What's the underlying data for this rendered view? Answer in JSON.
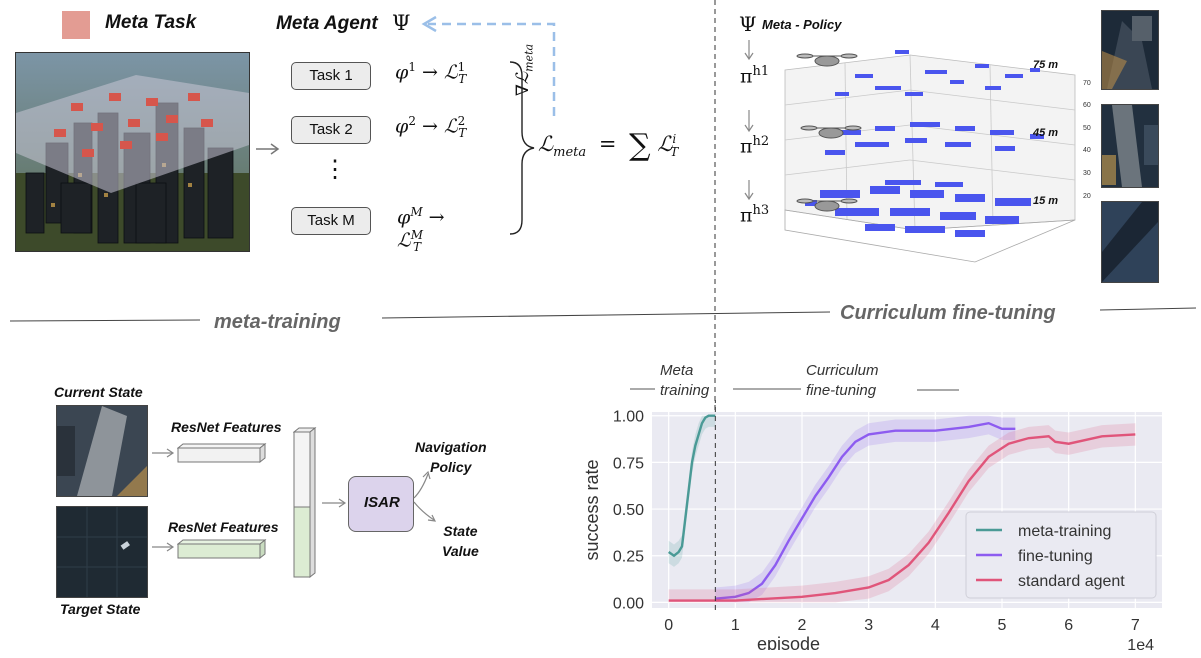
{
  "top_left": {
    "legend_label": "Meta Task",
    "agent_title": "Meta Agent",
    "agent_symbol": "Ψ",
    "tasks": [
      {
        "label": "Task 1",
        "phi": "φ",
        "phi_sup": "1",
        "loss": "ℒ",
        "loss_sub": "T",
        "loss_sup": "1"
      },
      {
        "label": "Task 2",
        "phi": "φ",
        "phi_sup": "2",
        "loss": "ℒ",
        "loss_sub": "T",
        "loss_sup": "2"
      },
      {
        "label": "Task M",
        "phi": "φ",
        "phi_sup": "M",
        "loss": "ℒ",
        "loss_sub": "T",
        "loss_sup": "M"
      }
    ],
    "dots": "⋮",
    "arrow": "→",
    "gradient_label": "∇ℒ",
    "gradient_sub": "meta",
    "meta_loss": "ℒ",
    "meta_loss_sub": "meta",
    "equals": "=",
    "sum": "∑",
    "sum_term": "ℒ",
    "sum_term_sub": "T",
    "sum_term_sup": "i"
  },
  "top_right": {
    "policy_symbol": "Ψ",
    "policy_label": "Meta - Policy",
    "levels": [
      {
        "pi": "π",
        "sup": "h1",
        "height": "75 m"
      },
      {
        "pi": "π",
        "sup": "h2",
        "height": "45 m"
      },
      {
        "pi": "π",
        "sup": "h3",
        "height": "15 m"
      }
    ],
    "z_ticks": [
      "70",
      "60",
      "50",
      "40",
      "30",
      "20"
    ]
  },
  "section_labels": {
    "left": "meta-training",
    "right": "Curriculum fine-tuning"
  },
  "bottom_left": {
    "current_state": "Current State",
    "target_state": "Target State",
    "features_1": "ResNet Features",
    "features_2": "ResNet Features",
    "isar": "ISAR",
    "nav_policy_line1": "Navigation",
    "nav_policy_line2": "Policy",
    "state_value_line1": "State",
    "state_value_line2": "Value"
  },
  "plot_header": {
    "meta_line1": "Meta",
    "meta_line2": "training",
    "curr_line1": "Curriculum",
    "curr_line2": "fine-tuning"
  },
  "chart_data": {
    "type": "line",
    "xlabel": "episode",
    "ylabel": "success rate",
    "x_scale_label": "1e4",
    "xlim": [
      -0.25,
      7.4
    ],
    "ylim": [
      -0.03,
      1.02
    ],
    "x_ticks": [
      "0",
      "1",
      "2",
      "3",
      "4",
      "5",
      "6",
      "7"
    ],
    "y_ticks": [
      "0.00",
      "0.25",
      "0.50",
      "0.75",
      "1.00"
    ],
    "vline_x": 0.7,
    "legend_position": "lower-right",
    "series": [
      {
        "name": "meta-training",
        "color": "#4a9a96",
        "x": [
          0.0,
          0.08,
          0.15,
          0.2,
          0.25,
          0.3,
          0.35,
          0.4,
          0.45,
          0.5,
          0.55,
          0.6,
          0.7
        ],
        "y": [
          0.27,
          0.25,
          0.27,
          0.3,
          0.45,
          0.6,
          0.75,
          0.84,
          0.9,
          0.96,
          0.99,
          1.0,
          1.0
        ]
      },
      {
        "name": "fine-tuning",
        "color": "#8d5cf0",
        "x": [
          0.7,
          1.0,
          1.2,
          1.4,
          1.6,
          1.8,
          2.0,
          2.2,
          2.4,
          2.6,
          2.8,
          3.0,
          3.4,
          4.0,
          4.5,
          4.8,
          5.0,
          5.2
        ],
        "y": [
          0.02,
          0.03,
          0.05,
          0.1,
          0.2,
          0.33,
          0.45,
          0.57,
          0.67,
          0.78,
          0.86,
          0.9,
          0.92,
          0.92,
          0.94,
          0.96,
          0.93,
          0.93
        ]
      },
      {
        "name": "standard agent",
        "color": "#e0557a",
        "x": [
          0.0,
          0.5,
          1.0,
          1.5,
          2.0,
          2.5,
          3.0,
          3.3,
          3.6,
          3.9,
          4.2,
          4.5,
          4.8,
          5.1,
          5.4,
          5.7,
          5.8,
          6.0,
          6.5,
          7.0
        ],
        "y": [
          0.01,
          0.01,
          0.01,
          0.02,
          0.03,
          0.05,
          0.08,
          0.12,
          0.2,
          0.32,
          0.48,
          0.65,
          0.78,
          0.85,
          0.88,
          0.89,
          0.86,
          0.85,
          0.89,
          0.9
        ]
      }
    ]
  }
}
